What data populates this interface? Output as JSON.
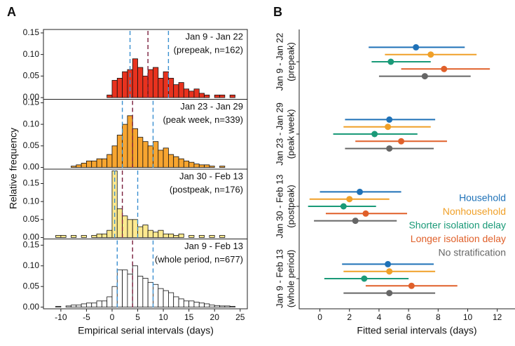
{
  "chart_data": [
    {
      "type": "histogram",
      "label": "A",
      "ylabel": "Relative frequency",
      "xlabel": "Empirical serial intervals (days)",
      "xlim": [
        -13.4,
        26.4
      ],
      "xticks": [
        -10,
        -5,
        0,
        5,
        10,
        15,
        20,
        25
      ],
      "bins": [
        -11,
        -10,
        -9,
        -8,
        -7,
        -6,
        -5,
        -4,
        -3,
        -2,
        -1,
        0,
        1,
        2,
        3,
        4,
        5,
        6,
        7,
        8,
        9,
        10,
        11,
        12,
        13,
        14,
        15,
        16,
        17,
        18,
        19,
        20,
        21,
        22,
        23,
        24,
        25
      ],
      "quantile_color": "#3a8fd0",
      "mean_color": "#7a1f3d",
      "panels": [
        {
          "title": "Jan 9 - Jan 22",
          "subtitle": "(prepeak, n=162)",
          "color": "#e8321e",
          "values": [
            0,
            0,
            0,
            0,
            0,
            0,
            0,
            0,
            0,
            0,
            0.006,
            0.04,
            0.045,
            0.06,
            0.065,
            0.09,
            0.07,
            0.05,
            0.065,
            0.07,
            0.045,
            0.06,
            0.045,
            0.03,
            0.035,
            0.02,
            0.015,
            0.02,
            0.01,
            0.006,
            0,
            0.006,
            0.006,
            0,
            0.006,
            0
          ],
          "ylim": [
            -0.004,
            0.158
          ],
          "yticks": [
            {
              "value": 0,
              "label": "0.00"
            },
            {
              "value": 0.05,
              "label": "0.05"
            },
            {
              "value": 0.1,
              "label": "0.10"
            },
            {
              "value": 0.15,
              "label": "0.15"
            }
          ],
          "quantile_lines": [
            3.5,
            11
          ],
          "mean_line": 7
        },
        {
          "title": "Jan 23 - Jan 29",
          "subtitle": "(peak week, n=339)",
          "color": "#f7a530",
          "values": [
            0,
            0,
            0,
            0.003,
            0.006,
            0.01,
            0.015,
            0.015,
            0.02,
            0.02,
            0.03,
            0.05,
            0.075,
            0.1,
            0.12,
            0.09,
            0.07,
            0.06,
            0.05,
            0.06,
            0.04,
            0.045,
            0.03,
            0.025,
            0.02,
            0.015,
            0.012,
            0.008,
            0.006,
            0.006,
            0.003,
            0,
            0.003,
            0,
            0,
            0
          ],
          "ylim": [
            -0.004,
            0.158
          ],
          "yticks": [
            {
              "value": 0,
              "label": "0.00"
            },
            {
              "value": 0.05,
              "label": "0.05"
            },
            {
              "value": 0.1,
              "label": "0.10"
            },
            {
              "value": 0.15,
              "label": "0.15"
            }
          ],
          "quantile_lines": [
            2,
            8
          ],
          "mean_line": 4
        },
        {
          "title": "Jan 30 - Feb 13",
          "subtitle": "(postpeak, n=176)",
          "color": "#fde98f",
          "values": [
            0.006,
            0.006,
            0,
            0.006,
            0,
            0.006,
            0,
            0.006,
            0.01,
            0.01,
            0.02,
            0.185,
            0.08,
            0.06,
            0.05,
            0.05,
            0.03,
            0.035,
            0.02,
            0.015,
            0.02,
            0.01,
            0.01,
            0.006,
            0.01,
            0,
            0.006,
            0,
            0.006,
            0,
            0.006,
            0,
            0.006,
            0,
            0,
            0
          ],
          "ylim": [
            -0.004,
            0.19
          ],
          "yticks": [
            {
              "value": 0,
              "label": "0.00"
            },
            {
              "value": 0.05,
              "label": "0.05"
            },
            {
              "value": 0.1,
              "label": "0.10"
            },
            {
              "value": 0.15,
              "label": "0.15"
            }
          ],
          "quantile_lines": [
            0.5,
            5
          ],
          "mean_line": 2
        },
        {
          "title": "Jan 9 - Feb 13",
          "subtitle": "(whole period, n=677)",
          "color": "#ffffff",
          "values": [
            0.002,
            0,
            0.003,
            0.005,
            0.005,
            0.008,
            0.01,
            0.01,
            0.015,
            0.015,
            0.025,
            0.05,
            0.09,
            0.09,
            0.08,
            0.1,
            0.075,
            0.07,
            0.06,
            0.055,
            0.045,
            0.04,
            0.035,
            0.025,
            0.02,
            0.015,
            0.015,
            0.012,
            0.01,
            0.008,
            0.005,
            0.004,
            0.003,
            0.003,
            0.002,
            0
          ],
          "ylim": [
            -0.004,
            0.165
          ],
          "yticks": [
            {
              "value": 0,
              "label": "0.00"
            },
            {
              "value": 0.05,
              "label": "0.05"
            },
            {
              "value": 0.1,
              "label": "0.10"
            },
            {
              "value": 0.15,
              "label": "0.15"
            }
          ],
          "quantile_lines": [
            1,
            8
          ],
          "mean_line": 4
        }
      ]
    },
    {
      "type": "interval",
      "label": "B",
      "xlabel": "Fitted serial intervals (days)",
      "xlim": [
        -1.4,
        13.2
      ],
      "xticks": [
        0,
        2,
        4,
        6,
        8,
        10,
        12
      ],
      "legend": "right",
      "categories": [
        "Jan 9 - Jan 22",
        "Jan 23 - Jan 29",
        "Jan 30 - Feb 13",
        "Jan 9 - Feb 13"
      ],
      "category_notes": [
        "(prepeak)",
        "(peak week)",
        "(postpeak)",
        "(whole period)"
      ],
      "series": [
        {
          "name": "Household",
          "color": "#1f72b8",
          "values": [
            6.5,
            4.7,
            2.7,
            4.6
          ],
          "lower": [
            3.3,
            1.7,
            0,
            1.5
          ],
          "upper": [
            9.8,
            7.8,
            5.5,
            7.7
          ]
        },
        {
          "name": "Nonhousehold",
          "color": "#f0a028",
          "values": [
            7.5,
            4.6,
            2.0,
            4.7
          ],
          "lower": [
            4.4,
            1.6,
            -0.7,
            1.6
          ],
          "upper": [
            10.6,
            7.5,
            4.7,
            7.8
          ]
        },
        {
          "name": "Shorter isolation delay",
          "color": "#1a9a78",
          "values": [
            4.8,
            3.7,
            1.6,
            3.0
          ],
          "lower": [
            3.5,
            0.9,
            -0.8,
            0.3
          ],
          "upper": [
            7.5,
            6.6,
            3.8,
            6.0
          ]
        },
        {
          "name": "Longer isolation delay",
          "color": "#e0602a",
          "values": [
            8.4,
            5.5,
            3.1,
            6.2
          ],
          "lower": [
            5.5,
            2.4,
            0.4,
            3.1
          ],
          "upper": [
            11.5,
            8.6,
            5.9,
            9.3
          ]
        },
        {
          "name": "No stratification",
          "color": "#666666",
          "values": [
            7.1,
            4.7,
            2.4,
            4.7
          ],
          "lower": [
            4.0,
            1.7,
            -0.4,
            1.6
          ],
          "upper": [
            10.2,
            7.7,
            5.2,
            7.8
          ]
        }
      ]
    }
  ]
}
